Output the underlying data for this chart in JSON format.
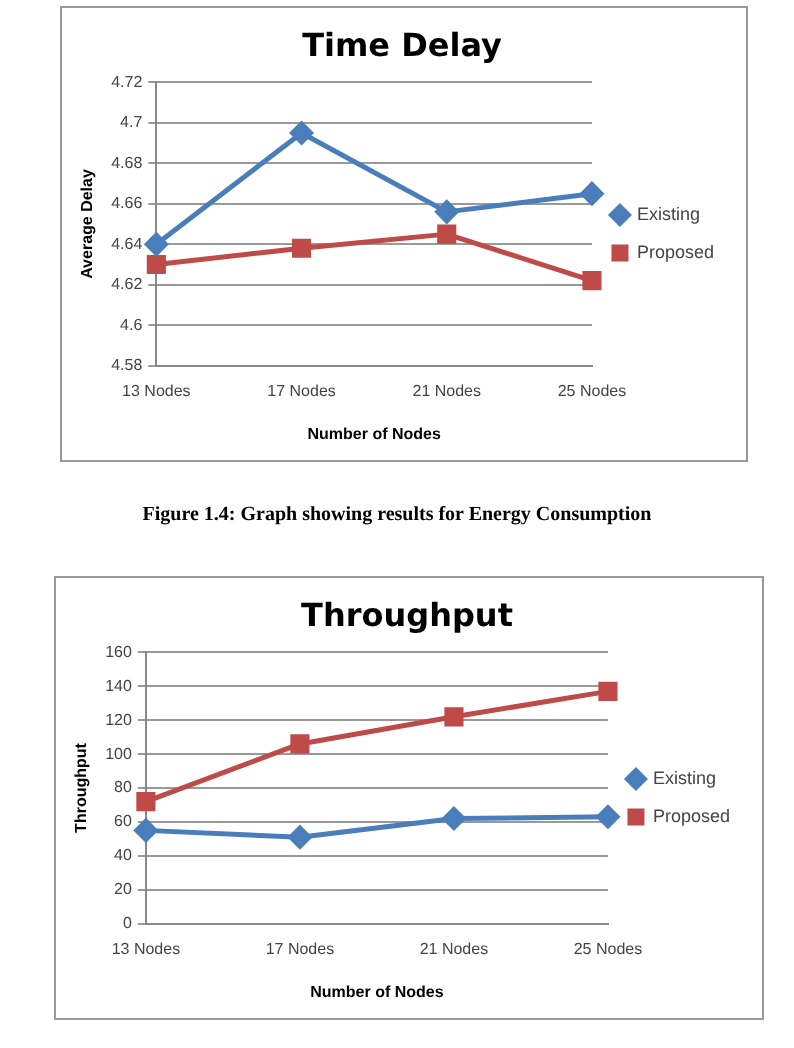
{
  "chart_data": [
    {
      "type": "line",
      "title": "Time Delay",
      "xlabel": "Number of Nodes",
      "ylabel": "Average Delay",
      "categories": [
        "13 Nodes",
        "17 Nodes",
        "21 Nodes",
        "25 Nodes"
      ],
      "series": [
        {
          "name": "Existing",
          "color": "#4a7ebb",
          "marker": "diamond",
          "values": [
            4.64,
            4.695,
            4.656,
            4.665
          ]
        },
        {
          "name": "Proposed",
          "color": "#be4b48",
          "marker": "square",
          "values": [
            4.63,
            4.638,
            4.645,
            4.622
          ]
        }
      ],
      "ylim": [
        4.58,
        4.72
      ],
      "yticks": [
        4.58,
        4.6,
        4.62,
        4.64,
        4.66,
        4.68,
        4.7,
        4.72
      ],
      "grid": "y",
      "legend": "right",
      "annotations": [
        "Figure 1.4: Graph showing results for Energy Consumption"
      ]
    },
    {
      "type": "line",
      "title": "Throughput",
      "xlabel": "Number of Nodes",
      "ylabel": "Throughput",
      "categories": [
        "13 Nodes",
        "17 Nodes",
        "21 Nodes",
        "25 Nodes"
      ],
      "series": [
        {
          "name": "Existing",
          "color": "#4a7ebb",
          "marker": "diamond",
          "values": [
            55,
            51,
            62,
            63
          ]
        },
        {
          "name": "Proposed",
          "color": "#be4b48",
          "marker": "square",
          "values": [
            72,
            106,
            122,
            137
          ]
        }
      ],
      "ylim": [
        0,
        160
      ],
      "yticks": [
        0,
        20,
        40,
        60,
        80,
        100,
        120,
        140,
        160
      ],
      "grid": "y",
      "legend": "right"
    }
  ]
}
